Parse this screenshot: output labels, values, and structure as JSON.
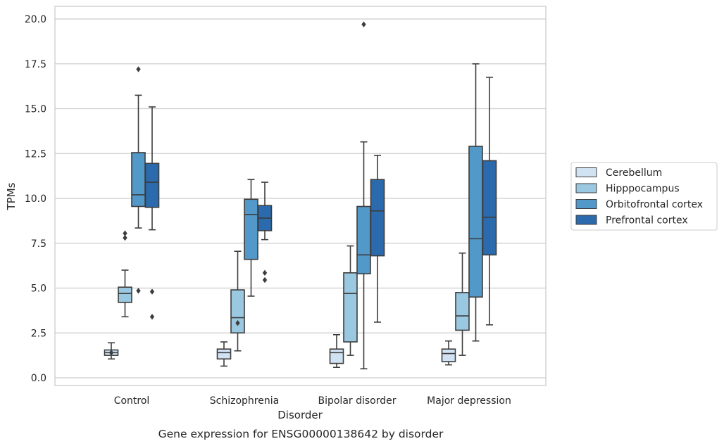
{
  "chart_data": {
    "type": "box",
    "caption": "Gene expression for ENSG00000138642 by disorder",
    "xlabel": "Disorder",
    "ylabel": "TPMs",
    "ylim": [
      -0.45,
      20.7
    ],
    "yticks": [
      0.0,
      2.5,
      5.0,
      7.5,
      10.0,
      12.5,
      15.0,
      17.5,
      20.0
    ],
    "ytick_labels": [
      "0.0",
      "2.5",
      "5.0",
      "7.5",
      "10.0",
      "12.5",
      "15.0",
      "17.5",
      "20.0"
    ],
    "grid": "horizontal",
    "legend_position": "right",
    "categories": [
      "Control",
      "Schizophrenia",
      "Bipolar disorder",
      "Major depression"
    ],
    "series": [
      {
        "name": "Cerebellum",
        "color": "#d1e2f2",
        "boxes": [
          {
            "min": 1.05,
            "q1": 1.25,
            "median": 1.4,
            "q3": 1.55,
            "max": 1.95,
            "outliers": [
              1.4
            ]
          },
          {
            "min": 0.65,
            "q1": 1.05,
            "median": 1.4,
            "q3": 1.6,
            "max": 2.0,
            "outliers": []
          },
          {
            "min": 0.58,
            "q1": 0.8,
            "median": 1.4,
            "q3": 1.6,
            "max": 2.4,
            "outliers": []
          },
          {
            "min": 0.72,
            "q1": 0.9,
            "median": 1.35,
            "q3": 1.6,
            "max": 2.05,
            "outliers": []
          }
        ]
      },
      {
        "name": "Hipppocampus",
        "color": "#9ac8e0",
        "boxes": [
          {
            "min": 3.4,
            "q1": 4.2,
            "median": 4.7,
            "q3": 5.05,
            "max": 6.0,
            "outliers": [
              7.8,
              8.05
            ]
          },
          {
            "min": 1.5,
            "q1": 2.5,
            "median": 3.35,
            "q3": 4.9,
            "max": 7.05,
            "outliers": [
              3.05
            ]
          },
          {
            "min": 1.25,
            "q1": 2.0,
            "median": 4.7,
            "q3": 5.85,
            "max": 7.35,
            "outliers": []
          },
          {
            "min": 1.25,
            "q1": 2.65,
            "median": 3.45,
            "q3": 4.75,
            "max": 6.95,
            "outliers": []
          }
        ]
      },
      {
        "name": "Orbitofrontal cortex",
        "color": "#5298c8",
        "boxes": [
          {
            "min": 8.35,
            "q1": 9.55,
            "median": 10.2,
            "q3": 12.55,
            "max": 15.75,
            "outliers": [
              17.2,
              4.85
            ]
          },
          {
            "min": 4.55,
            "q1": 6.6,
            "median": 9.1,
            "q3": 9.95,
            "max": 11.05,
            "outliers": []
          },
          {
            "min": 0.5,
            "q1": 5.8,
            "median": 6.85,
            "q3": 9.55,
            "max": 13.15,
            "outliers": [
              19.7
            ]
          },
          {
            "min": 2.05,
            "q1": 4.5,
            "median": 7.75,
            "q3": 12.9,
            "max": 17.5,
            "outliers": []
          }
        ]
      },
      {
        "name": "Prefrontal cortex",
        "color": "#2a6aad",
        "boxes": [
          {
            "min": 8.25,
            "q1": 9.5,
            "median": 10.9,
            "q3": 11.95,
            "max": 15.1,
            "outliers": [
              4.8,
              3.4
            ]
          },
          {
            "min": 7.7,
            "q1": 8.2,
            "median": 8.9,
            "q3": 9.6,
            "max": 10.9,
            "outliers": [
              5.85,
              5.45
            ]
          },
          {
            "min": 3.1,
            "q1": 6.8,
            "median": 9.3,
            "q3": 11.05,
            "max": 12.4,
            "outliers": []
          },
          {
            "min": 2.95,
            "q1": 6.85,
            "median": 8.95,
            "q3": 12.1,
            "max": 16.75,
            "outliers": []
          }
        ]
      }
    ]
  },
  "style": {
    "frame_color": "#cccccc",
    "grid_color": "#cccccc",
    "box_edge_color": "#3d3d3d",
    "text_color": "#262626"
  }
}
